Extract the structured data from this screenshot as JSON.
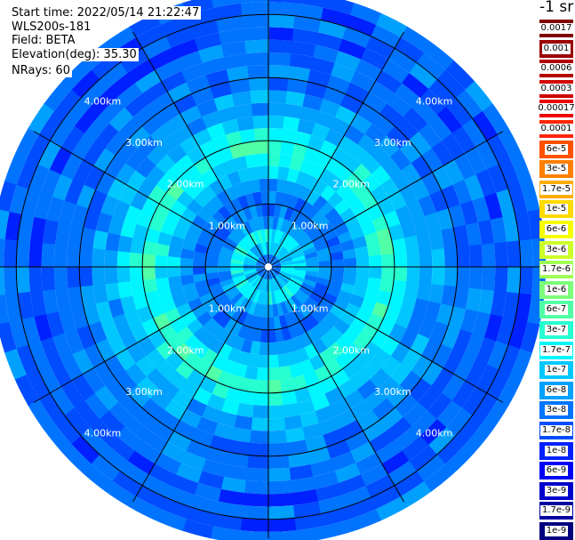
{
  "header": {
    "start_time": "Start time: 2022/05/14 21:22:47",
    "instrument": "WLS200s-181",
    "field": "Field: BETA",
    "elevation": "Elevation(deg): 35.30",
    "nrays": "NRays: 60"
  },
  "colorbar": {
    "unit_label": "-1 sr",
    "entries": [
      {
        "label": "0.0017",
        "color": "#800000"
      },
      {
        "label": "0.001",
        "color": "#9a0000"
      },
      {
        "label": "0.0006",
        "color": "#b40000"
      },
      {
        "label": "0.0003",
        "color": "#d00000"
      },
      {
        "label": "0.00017",
        "color": "#ec0000"
      },
      {
        "label": "0.0001",
        "color": "#ff2400"
      },
      {
        "label": "6e-5",
        "color": "#ff5200"
      },
      {
        "label": "3e-5",
        "color": "#ff8000"
      },
      {
        "label": "1.7e-5",
        "color": "#ffae00"
      },
      {
        "label": "1e-5",
        "color": "#ffda00"
      },
      {
        "label": "6e-6",
        "color": "#f6ff00"
      },
      {
        "label": "3e-6",
        "color": "#ccff2a"
      },
      {
        "label": "1.7e-6",
        "color": "#a0ff56"
      },
      {
        "label": "1e-6",
        "color": "#7cff7a"
      },
      {
        "label": "6e-7",
        "color": "#50ffa6"
      },
      {
        "label": "3e-7",
        "color": "#26ffd0"
      },
      {
        "label": "1.7e-7",
        "color": "#00f6ff"
      },
      {
        "label": "1e-7",
        "color": "#00c8ff"
      },
      {
        "label": "6e-8",
        "color": "#00a0ff"
      },
      {
        "label": "3e-8",
        "color": "#0074ff"
      },
      {
        "label": "1.7e-8",
        "color": "#004cff"
      },
      {
        "label": "1e-8",
        "color": "#0020ff"
      },
      {
        "label": "6e-9",
        "color": "#0000f6"
      },
      {
        "label": "3e-9",
        "color": "#0000cc"
      },
      {
        "label": "1.7e-9",
        "color": "#0000a0"
      },
      {
        "label": "1e-9",
        "color": "#000080"
      }
    ]
  },
  "chart_data": {
    "type": "heatmap",
    "projection": "polar",
    "title": "",
    "ring_labels": [
      "1.00km",
      "2.00km",
      "3.00km",
      "4.00km"
    ],
    "range_rings_km": [
      1,
      2,
      3,
      4
    ],
    "max_range_km": 4.3,
    "spokes_deg": [
      0,
      30,
      60,
      90,
      120,
      150,
      180,
      210,
      240,
      270,
      300,
      330
    ],
    "nrays": 60,
    "range_gate_profile": {
      "range_km": [
        0.1,
        0.3,
        0.5,
        0.7,
        0.9,
        1.1,
        1.3,
        1.5,
        1.7,
        1.9,
        2.1,
        2.3,
        2.5,
        2.7,
        2.9,
        3.1,
        3.3,
        3.5,
        3.7,
        3.9,
        4.1,
        4.3
      ],
      "dominant_value_sr_inv": [
        "3e-8",
        "1e-7",
        "1.7e-7",
        "6e-8",
        "3e-8",
        "3e-8",
        "6e-8",
        "1e-7",
        "1.7e-7",
        "3e-7",
        "1.7e-7",
        "1e-7",
        "6e-8",
        "6e-8",
        "3e-8",
        "3e-8",
        "3e-8",
        "3e-8",
        "1.7e-8",
        "3e-8",
        "1.7e-8",
        "3e-8"
      ]
    },
    "colorbar_ticks": [
      "0.0017",
      "0.001",
      "0.0006",
      "0.0003",
      "0.00017",
      "0.0001",
      "6e-5",
      "3e-5",
      "1.7e-5",
      "1e-5",
      "6e-6",
      "3e-6",
      "1.7e-6",
      "1e-6",
      "6e-7",
      "3e-7",
      "1.7e-7",
      "1e-7",
      "6e-8",
      "3e-8",
      "1.7e-8",
      "1e-8",
      "6e-9",
      "3e-9",
      "1.7e-9",
      "1e-9"
    ],
    "colorbar_unit": "-1 sr",
    "grid": true
  }
}
